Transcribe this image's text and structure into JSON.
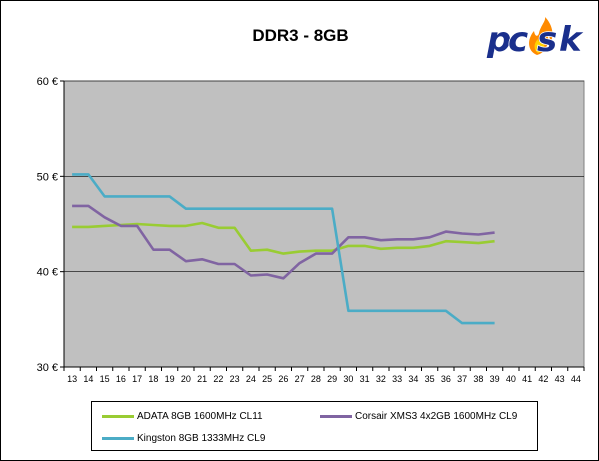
{
  "chart_data": {
    "type": "line",
    "title": "DDR3 - 8GB",
    "xlabel": "",
    "ylabel": "",
    "x": [
      13,
      14,
      15,
      16,
      17,
      18,
      19,
      20,
      21,
      22,
      23,
      24,
      25,
      26,
      27,
      28,
      29,
      30,
      31,
      32,
      33,
      34,
      35,
      36,
      37,
      38,
      39,
      40,
      41,
      42,
      43,
      44
    ],
    "ylim": [
      30,
      60
    ],
    "y_ticks": [
      "30 €",
      "40 €",
      "50 €",
      "60 €"
    ],
    "y_tick_values": [
      30,
      40,
      50,
      60
    ],
    "grid": "horizontal",
    "plot_background": "#c0c0c0",
    "legend_position": "bottom",
    "series": [
      {
        "name": "ADATA 8GB 1600MHz CL11",
        "color": "#99cc33",
        "x": [
          13,
          14,
          15,
          16,
          17,
          18,
          19,
          20,
          21,
          22,
          23,
          24,
          25,
          26,
          27,
          28,
          29,
          30,
          31,
          32,
          33,
          34,
          35,
          36,
          37,
          38,
          39
        ],
        "values": [
          44.7,
          44.7,
          44.8,
          44.9,
          45.0,
          44.9,
          44.8,
          44.8,
          45.1,
          44.6,
          44.6,
          42.2,
          42.3,
          41.9,
          42.1,
          42.2,
          42.2,
          42.7,
          42.7,
          42.4,
          42.5,
          42.5,
          42.7,
          43.2,
          43.1,
          43.0,
          43.2
        ]
      },
      {
        "name": "Corsair XMS3 4x2GB 1600MHz CL9",
        "color": "#8064a2",
        "x": [
          13,
          14,
          15,
          16,
          17,
          18,
          19,
          20,
          21,
          22,
          23,
          24,
          25,
          26,
          27,
          28,
          29,
          30,
          31,
          32,
          33,
          34,
          35,
          36,
          37,
          38,
          39
        ],
        "values": [
          46.9,
          46.9,
          45.7,
          44.8,
          44.8,
          42.3,
          42.3,
          41.1,
          41.3,
          40.8,
          40.8,
          39.6,
          39.7,
          39.3,
          40.9,
          41.9,
          41.9,
          43.6,
          43.6,
          43.3,
          43.4,
          43.4,
          43.6,
          44.2,
          44.0,
          43.9,
          44.1
        ]
      },
      {
        "name": "Kingston 8GB 1333MHz CL9",
        "color": "#4bacc6",
        "x": [
          13,
          14,
          15,
          16,
          17,
          18,
          19,
          20,
          21,
          22,
          23,
          24,
          25,
          26,
          27,
          28,
          29,
          30,
          31,
          32,
          33,
          34,
          35,
          36,
          37,
          38,
          39
        ],
        "values": [
          50.2,
          50.2,
          47.9,
          47.9,
          47.9,
          47.9,
          47.9,
          46.6,
          46.6,
          46.6,
          46.6,
          46.6,
          46.6,
          46.6,
          46.6,
          46.6,
          46.6,
          35.9,
          35.9,
          35.9,
          35.9,
          35.9,
          35.9,
          35.9,
          34.6,
          34.6,
          34.6
        ]
      }
    ]
  },
  "logo": {
    "text": "pcsk",
    "letters": [
      "p",
      "c",
      "s",
      "k"
    ],
    "icon": "flame-icon",
    "colors": {
      "letters": "#1a2f8c",
      "flame_outer": "#ff8a00",
      "flame_inner": "#ffd200"
    }
  }
}
